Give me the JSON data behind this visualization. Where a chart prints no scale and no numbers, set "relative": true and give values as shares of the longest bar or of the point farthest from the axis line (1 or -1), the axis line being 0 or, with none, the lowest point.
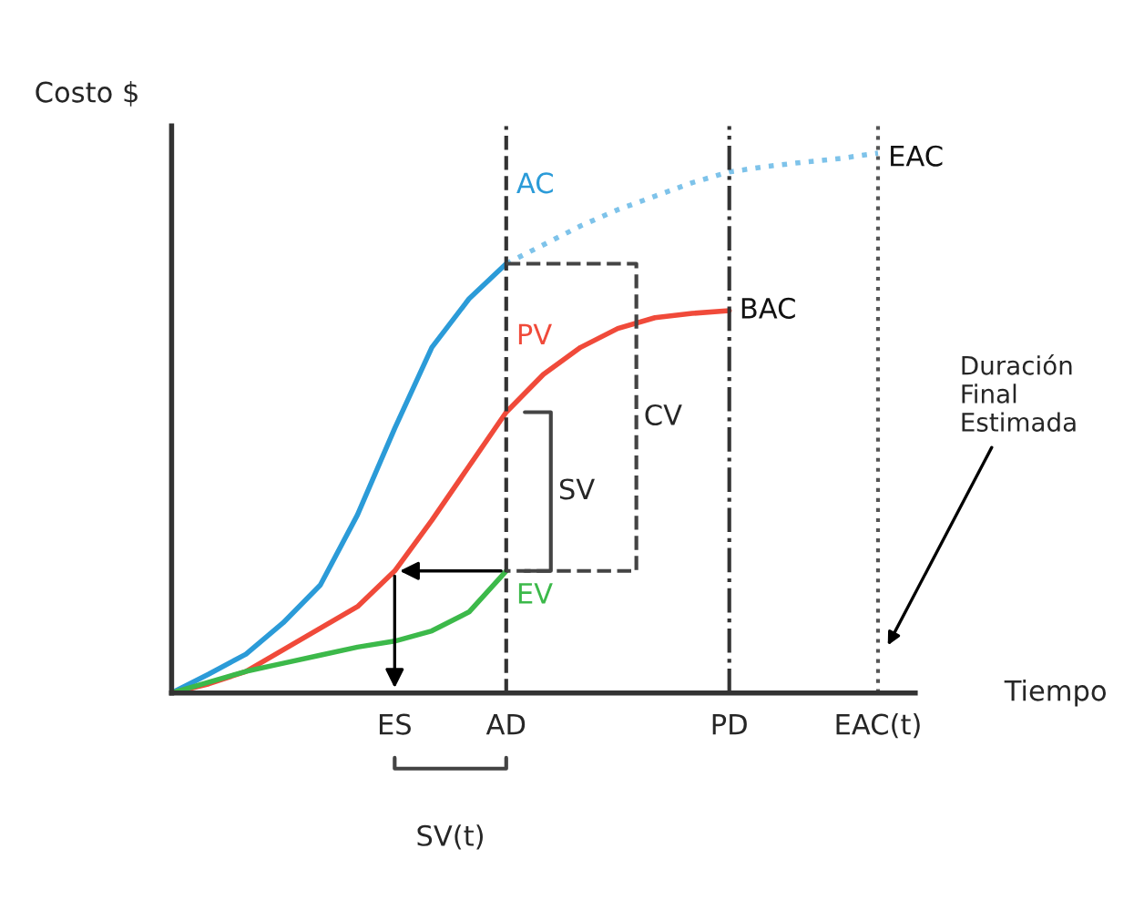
{
  "chart_data": {
    "type": "line",
    "relative": true,
    "ylabel": "Costo $",
    "xlabel": "Tiempo",
    "categories": [
      null,
      null,
      null,
      null,
      null,
      null,
      "ES",
      null,
      null,
      "AD",
      null,
      null,
      null,
      null,
      null,
      "PD",
      null,
      null,
      null,
      "EAC(t)",
      null
    ],
    "series": [
      {
        "color": "#2b9bd8",
        "line_style": "solid",
        "values": [
          0,
          0.035,
          0.072,
          0.13,
          0.2,
          0.33,
          0.49,
          0.64,
          0.73,
          0.795,
          null,
          null,
          null,
          null,
          null,
          null,
          null,
          null,
          null,
          null,
          null
        ]
      },
      {
        "color": "#7ec3ea",
        "line_style": "dotted",
        "values": [
          null,
          null,
          null,
          null,
          null,
          null,
          null,
          null,
          null,
          0.795,
          0.83,
          0.865,
          0.895,
          0.92,
          0.945,
          0.965,
          0.975,
          0.983,
          0.99,
          1.0,
          null
        ]
      },
      {
        "color": "#f04a3a",
        "line_style": "solid",
        "values": [
          0,
          0.017,
          0.04,
          0.08,
          0.12,
          0.16,
          0.226,
          0.32,
          0.42,
          0.52,
          0.59,
          0.64,
          0.675,
          0.695,
          0.703,
          0.708,
          null,
          null,
          null,
          null,
          null
        ]
      },
      {
        "color": "#3cb94a",
        "line_style": "solid",
        "values": [
          0,
          0.02,
          0.04,
          0.055,
          0.07,
          0.085,
          0.096,
          0.115,
          0.15,
          0.226,
          null,
          null,
          null,
          null,
          null,
          null,
          null,
          null,
          null,
          null,
          null
        ]
      }
    ],
    "ref_lines": [
      {
        "axis": "x",
        "value": "AD",
        "line_style": "dashed",
        "color": "#333333"
      },
      {
        "axis": "x",
        "value": "PD",
        "line_style": "dashdot",
        "color": "#333333"
      },
      {
        "axis": "x",
        "value": "EAC(t)",
        "line_style": "dotted",
        "color": "#555555"
      }
    ],
    "annotations": [
      {
        "text": "AC",
        "x": "AD",
        "y": 0.94
      },
      {
        "text": "PV",
        "x": "AD",
        "y": 0.66
      },
      {
        "text": "EV",
        "x": "AD",
        "y": 0.18
      },
      {
        "text": "BAC",
        "x": "PD",
        "y": 0.708
      },
      {
        "text": "EAC",
        "x": "EAC(t)",
        "y": 0.99
      },
      "CV",
      "SV",
      "SV(t)",
      "Duración\nFinal\nEstimada"
    ],
    "grid": false
  }
}
